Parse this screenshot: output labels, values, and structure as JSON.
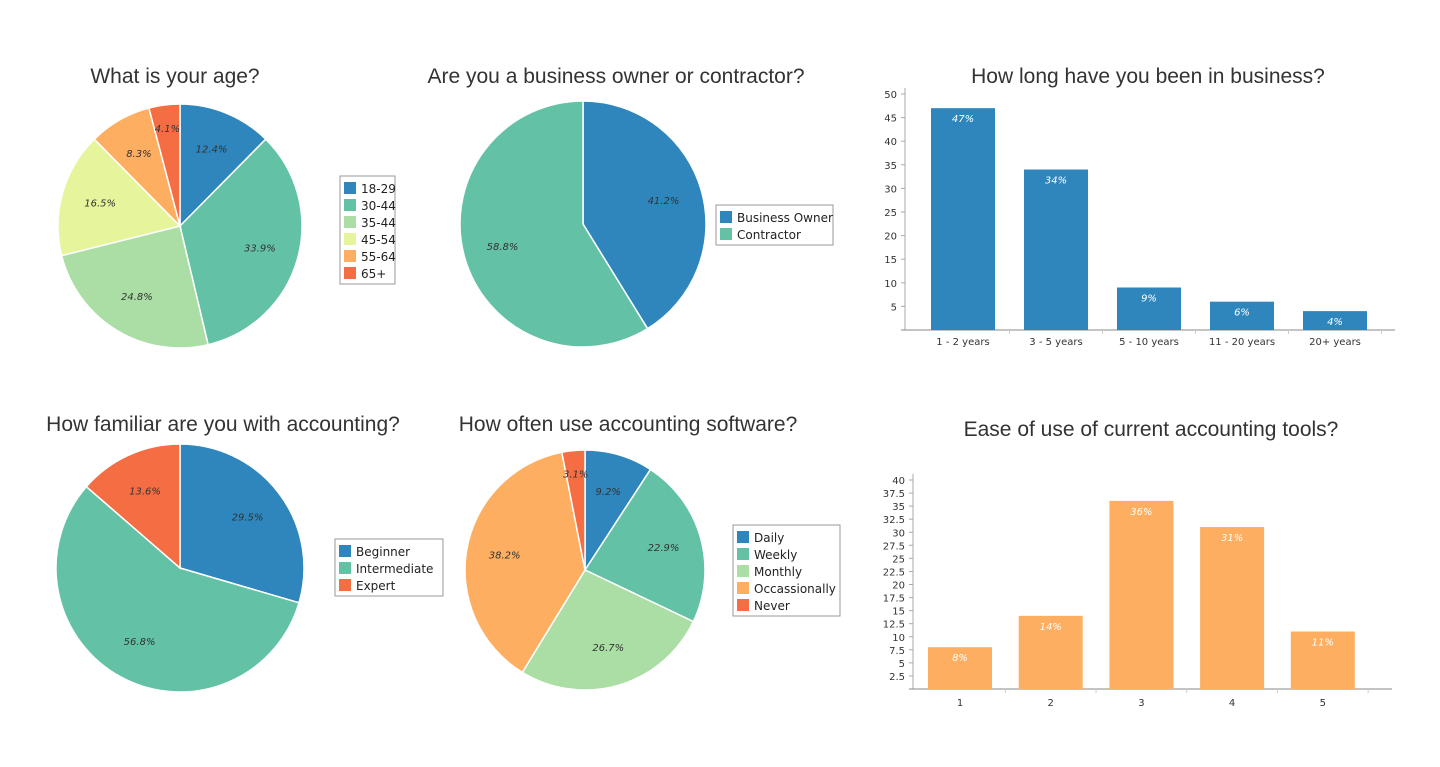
{
  "colors": {
    "blue": "#2e86bc",
    "teal": "#63c2a6",
    "lightgreen": "#abdea4",
    "yellow": "#e6f59c",
    "orange": "#fdae61",
    "red": "#f46d43"
  },
  "chart_data": [
    {
      "type": "pie",
      "title": "What is your age?",
      "labels": [
        "18-29",
        "30-44",
        "35-44",
        "45-54",
        "55-64",
        "65+"
      ],
      "values": [
        12.4,
        33.9,
        24.8,
        16.5,
        8.3,
        4.1
      ],
      "colors": [
        "#2e86bc",
        "#63c2a6",
        "#abdea4",
        "#e6f59c",
        "#fdae61",
        "#f46d43"
      ],
      "legend": "right"
    },
    {
      "type": "pie",
      "title": "Are you a business owner or contractor?",
      "labels": [
        "Business Owner",
        "Contractor"
      ],
      "values": [
        41.2,
        58.8
      ],
      "colors": [
        "#2e86bc",
        "#63c2a6"
      ],
      "legend": "right"
    },
    {
      "type": "bar",
      "title": "How long have you been in business?",
      "categories": [
        "1 - 2 years",
        "3 - 5 years",
        "5 - 10 years",
        "11 - 20 years",
        "20+ years"
      ],
      "values": [
        47,
        34,
        9,
        6,
        4
      ],
      "data_labels": [
        "47%",
        "34%",
        "9%",
        "6%",
        "4%"
      ],
      "yticks": [
        5,
        10,
        15,
        20,
        25,
        30,
        35,
        40,
        45,
        50
      ],
      "ylim": [
        0,
        50
      ],
      "color": "#2e86bc",
      "xlabel": "",
      "ylabel": ""
    },
    {
      "type": "pie",
      "title": "How familiar are you with accounting?",
      "labels": [
        "Beginner",
        "Intermediate",
        "Expert"
      ],
      "values": [
        29.5,
        56.8,
        13.6
      ],
      "colors": [
        "#2e86bc",
        "#63c2a6",
        "#f46d43"
      ],
      "legend": "right"
    },
    {
      "type": "pie",
      "title": "How often use accounting software?",
      "labels": [
        "Daily",
        "Weekly",
        "Monthly",
        "Occassionally",
        "Never"
      ],
      "values": [
        9.2,
        22.9,
        26.7,
        38.2,
        3.1
      ],
      "colors": [
        "#2e86bc",
        "#63c2a6",
        "#abdea4",
        "#fdae61",
        "#f46d43"
      ],
      "legend": "right"
    },
    {
      "type": "bar",
      "title": "Ease of use of current accounting tools?",
      "categories": [
        "1",
        "2",
        "3",
        "4",
        "5"
      ],
      "values": [
        8,
        14,
        36,
        31,
        11
      ],
      "data_labels": [
        "8%",
        "14%",
        "36%",
        "31%",
        "11%"
      ],
      "yticks": [
        "2.5",
        "5",
        "7.5",
        "10",
        "12.5",
        "15",
        "17.5",
        "20",
        "22.5",
        "25",
        "27.5",
        "30",
        "32.5",
        "35",
        "37.5",
        "40"
      ],
      "ylim": [
        0,
        40
      ],
      "color": "#fdae61",
      "xlabel": "",
      "ylabel": ""
    }
  ]
}
